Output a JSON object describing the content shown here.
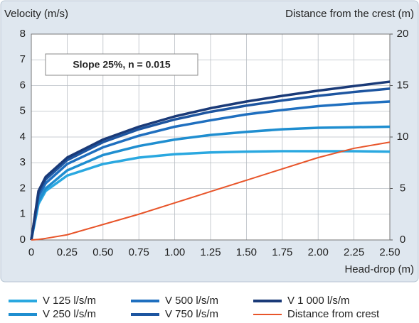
{
  "chart_data": {
    "type": "line",
    "annotation": "Slope 25%, n = 0.015",
    "ylabel": "Velocity (m/s)",
    "y2label": "Distance from the crest (m)",
    "xlabel": "Head-drop (m)",
    "x": [
      0,
      0.05,
      0.1,
      0.25,
      0.5,
      0.75,
      1.0,
      1.25,
      1.5,
      1.75,
      2.0,
      2.25,
      2.5
    ],
    "series": [
      {
        "name": "V 125 l/s/m",
        "color": "#2aa8e0",
        "values": [
          0,
          1.4,
          1.9,
          2.5,
          2.95,
          3.2,
          3.33,
          3.4,
          3.43,
          3.45,
          3.45,
          3.45,
          3.43
        ]
      },
      {
        "name": "V 250 l/s/m",
        "color": "#1f8ed0",
        "values": [
          0,
          1.5,
          2.0,
          2.7,
          3.3,
          3.65,
          3.9,
          4.08,
          4.2,
          4.3,
          4.36,
          4.38,
          4.4
        ]
      },
      {
        "name": "V 500 l/s/m",
        "color": "#1f6fbf",
        "values": [
          0,
          1.7,
          2.2,
          2.95,
          3.6,
          4.05,
          4.4,
          4.65,
          4.88,
          5.05,
          5.2,
          5.3,
          5.38
        ]
      },
      {
        "name": "V 750 l/s/m",
        "color": "#1d55a0",
        "values": [
          0,
          1.8,
          2.35,
          3.1,
          3.8,
          4.3,
          4.68,
          4.98,
          5.22,
          5.42,
          5.6,
          5.75,
          5.88
        ]
      },
      {
        "name": "V 1 000 l/s/m",
        "color": "#1a3a78",
        "values": [
          0,
          1.9,
          2.45,
          3.2,
          3.9,
          4.4,
          4.8,
          5.12,
          5.38,
          5.6,
          5.8,
          5.98,
          6.15
        ]
      },
      {
        "name": "Distance from crest",
        "color": "#e8552a",
        "axis": "y2",
        "values": [
          0,
          0.05,
          0.15,
          0.5,
          1.5,
          2.5,
          3.6,
          4.7,
          5.8,
          6.9,
          8.0,
          8.9,
          9.5
        ]
      }
    ],
    "xlim": [
      0,
      2.5
    ],
    "xticks": [
      0,
      0.25,
      {
        "value": 0.5,
        "label": "0.50"
      },
      0.75,
      {
        "value": 1,
        "label": "1.00"
      },
      1.25,
      {
        "value": 1.5,
        "label": "1.50"
      },
      1.75,
      {
        "value": 2,
        "label": "2.00"
      },
      2.25,
      {
        "value": 2.5,
        "label": "2.50"
      }
    ],
    "ylim": [
      0,
      8
    ],
    "yticks": [
      0,
      1,
      2,
      3,
      4,
      5,
      6,
      7,
      8
    ],
    "y2lim": [
      0,
      20
    ],
    "y2ticks": [
      0,
      5,
      10,
      15,
      20
    ],
    "grid": true
  }
}
